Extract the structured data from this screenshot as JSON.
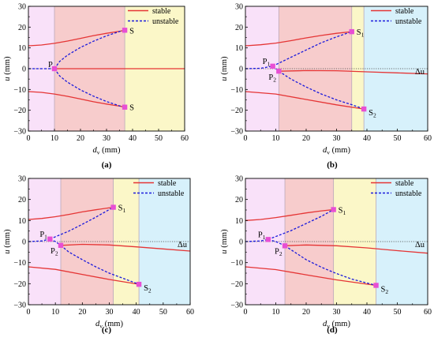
{
  "legend": {
    "stable": "stable",
    "unstable": "unstable"
  },
  "axes": {
    "ylabel_italic": "u",
    "ylabel_unit": " (mm)",
    "xlabel_base": "d",
    "xlabel_sub": "v",
    "xlabel_unit": " (mm)",
    "x_ticks": [
      "0",
      "10",
      "20",
      "30",
      "40",
      "50",
      "60"
    ],
    "y_ticks": [
      "30",
      "20",
      "10",
      "0",
      "-10",
      "-20",
      "-30"
    ]
  },
  "colors": {
    "stable": "#e53535",
    "unstable": "#1a1adc",
    "marker": "#e84fd4",
    "region_pink": "#f9e1f9",
    "region_red": "#f7cccc",
    "region_yellow": "#fbf7c8",
    "region_cyan": "#d7f1fb",
    "zero_line": "#444444"
  },
  "chart_data": [
    {
      "type": "line",
      "caption": "(a)",
      "xlim": [
        0,
        60
      ],
      "ylim": [
        -30,
        30
      ],
      "regions": [
        {
          "from": 0,
          "to": 10,
          "color": "pink"
        },
        {
          "from": 10,
          "to": 37,
          "color": "red"
        },
        {
          "from": 37,
          "to": 60,
          "color": "yellow"
        }
      ],
      "series": [
        {
          "name": "stable",
          "style": "solid",
          "x": [
            0,
            5,
            10,
            15,
            20,
            25,
            30,
            35,
            37
          ],
          "y": [
            11,
            11.4,
            12.2,
            13.3,
            14.6,
            15.9,
            17.0,
            18.0,
            18.5
          ]
        },
        {
          "name": "stable",
          "style": "solid",
          "x": [
            0,
            5,
            10,
            15,
            20,
            25,
            30,
            35,
            37
          ],
          "y": [
            -11,
            -11.4,
            -12.2,
            -13.3,
            -14.6,
            -15.9,
            -17.0,
            -18.0,
            -18.5
          ]
        },
        {
          "name": "stable",
          "style": "solid",
          "x": [
            10,
            60
          ],
          "y": [
            0,
            0
          ]
        },
        {
          "name": "unstable",
          "style": "dashed",
          "x": [
            10,
            12,
            15,
            20,
            25,
            30,
            35,
            37
          ],
          "y": [
            0,
            3.5,
            6.5,
            10.2,
            13.2,
            15.8,
            17.9,
            18.5
          ]
        },
        {
          "name": "unstable",
          "style": "dashed",
          "x": [
            10,
            12,
            15,
            20,
            25,
            30,
            35,
            37
          ],
          "y": [
            0,
            -3.5,
            -6.5,
            -10.2,
            -13.2,
            -15.8,
            -17.9,
            -18.5
          ]
        },
        {
          "name": "unstable",
          "style": "dashed",
          "x": [
            0,
            10
          ],
          "y": [
            0,
            0
          ]
        }
      ],
      "points": [
        {
          "label": "P",
          "sub": "",
          "x": 10,
          "y": 0,
          "dx": -8,
          "dy": -2
        },
        {
          "label": "S",
          "sub": "",
          "x": 37,
          "y": 18.5,
          "dx": 6,
          "dy": 4
        },
        {
          "label": "S",
          "sub": "",
          "x": 37,
          "y": -18.5,
          "dx": 6,
          "dy": 4
        }
      ],
      "delta": null
    },
    {
      "type": "line",
      "caption": "(b)",
      "xlim": [
        0,
        60
      ],
      "ylim": [
        -30,
        30
      ],
      "regions": [
        {
          "from": 0,
          "to": 11,
          "color": "pink"
        },
        {
          "from": 11,
          "to": 35,
          "color": "red"
        },
        {
          "from": 35,
          "to": 39,
          "color": "yellow"
        },
        {
          "from": 39,
          "to": 60,
          "color": "cyan"
        }
      ],
      "series": [
        {
          "name": "stable",
          "style": "solid",
          "x": [
            0,
            5,
            10,
            15,
            20,
            25,
            30,
            35
          ],
          "y": [
            11,
            11.5,
            12.3,
            13.5,
            14.8,
            16.0,
            17.0,
            17.8
          ]
        },
        {
          "name": "stable",
          "style": "solid",
          "x": [
            11,
            20,
            30,
            40,
            50,
            60
          ],
          "y": [
            -1.2,
            -0.9,
            -1.0,
            -1.5,
            -2.0,
            -2.5
          ]
        },
        {
          "name": "stable",
          "style": "solid",
          "x": [
            0,
            10,
            20,
            30,
            39
          ],
          "y": [
            -11,
            -12.2,
            -14.8,
            -17.4,
            -19.4
          ]
        },
        {
          "name": "unstable",
          "style": "dashed",
          "x": [
            0,
            5,
            9
          ],
          "y": [
            0,
            0.2,
            1.2
          ]
        },
        {
          "name": "unstable",
          "style": "dashed",
          "x": [
            9,
            15,
            20,
            25,
            30,
            35
          ],
          "y": [
            1.2,
            5.5,
            9.0,
            12.5,
            15.3,
            17.8
          ]
        },
        {
          "name": "unstable",
          "style": "dashed",
          "x": [
            9,
            10,
            11
          ],
          "y": [
            1.2,
            0,
            -1.2
          ]
        },
        {
          "name": "unstable",
          "style": "dashed",
          "x": [
            11,
            15,
            20,
            25,
            30,
            35,
            39
          ],
          "y": [
            -1.2,
            -5.0,
            -8.8,
            -12.2,
            -15.0,
            -17.3,
            -19.4
          ]
        }
      ],
      "points": [
        {
          "label": "P",
          "sub": "1",
          "x": 9,
          "y": 1.2,
          "dx": -13,
          "dy": -3
        },
        {
          "label": "P",
          "sub": "2",
          "x": 11,
          "y": -1.2,
          "dx": -13,
          "dy": 11
        },
        {
          "label": "S",
          "sub": "1",
          "x": 35,
          "y": 17.8,
          "dx": 6,
          "dy": 4
        },
        {
          "label": "S",
          "sub": "2",
          "x": 39,
          "y": -19.4,
          "dx": 6,
          "dy": 8
        }
      ],
      "delta": {
        "label": "Δu",
        "x": 52,
        "y": 0
      }
    },
    {
      "type": "line",
      "caption": "(c)",
      "xlim": [
        0,
        60
      ],
      "ylim": [
        -30,
        30
      ],
      "regions": [
        {
          "from": 0,
          "to": 12,
          "color": "pink"
        },
        {
          "from": 12,
          "to": 31.5,
          "color": "red"
        },
        {
          "from": 31.5,
          "to": 41,
          "color": "yellow"
        },
        {
          "from": 41,
          "to": 60,
          "color": "cyan"
        }
      ],
      "series": [
        {
          "name": "stable",
          "style": "solid",
          "x": [
            0,
            5,
            10,
            15,
            20,
            25,
            31.5
          ],
          "y": [
            10.5,
            11.0,
            11.8,
            12.9,
            14.1,
            15.1,
            16.3
          ]
        },
        {
          "name": "stable",
          "style": "solid",
          "x": [
            12,
            20,
            30,
            40,
            50,
            60
          ],
          "y": [
            -1.8,
            -1.3,
            -1.6,
            -2.5,
            -3.5,
            -4.5
          ]
        },
        {
          "name": "stable",
          "style": "solid",
          "x": [
            0,
            10,
            20,
            30,
            41
          ],
          "y": [
            -12,
            -13.2,
            -15.6,
            -18.0,
            -20.3
          ]
        },
        {
          "name": "unstable",
          "style": "dashed",
          "x": [
            0,
            5,
            8
          ],
          "y": [
            0,
            0.3,
            1.2
          ]
        },
        {
          "name": "unstable",
          "style": "dashed",
          "x": [
            8,
            15,
            20,
            25,
            31.5
          ],
          "y": [
            1.2,
            5.0,
            8.2,
            11.6,
            16.3
          ]
        },
        {
          "name": "unstable",
          "style": "dashed",
          "x": [
            8,
            10,
            12
          ],
          "y": [
            1.2,
            0,
            -1.8
          ]
        },
        {
          "name": "unstable",
          "style": "dashed",
          "x": [
            12,
            15,
            20,
            25,
            30,
            35,
            41
          ],
          "y": [
            -1.8,
            -5.0,
            -8.6,
            -12.0,
            -15.0,
            -17.4,
            -20.3
          ]
        }
      ],
      "points": [
        {
          "label": "P",
          "sub": "1",
          "x": 8,
          "y": 1.2,
          "dx": -13,
          "dy": -3
        },
        {
          "label": "P",
          "sub": "2",
          "x": 12,
          "y": -1.8,
          "dx": -13,
          "dy": 10
        },
        {
          "label": "S",
          "sub": "1",
          "x": 31.5,
          "y": 16.3,
          "dx": 6,
          "dy": 4
        },
        {
          "label": "S",
          "sub": "2",
          "x": 41,
          "y": -20.3,
          "dx": 6,
          "dy": 8
        }
      ],
      "delta": {
        "label": "Δu",
        "x": 52,
        "y": 0
      }
    },
    {
      "type": "line",
      "caption": "(d)",
      "xlim": [
        0,
        60
      ],
      "ylim": [
        -30,
        30
      ],
      "regions": [
        {
          "from": 0,
          "to": 13,
          "color": "pink"
        },
        {
          "from": 13,
          "to": 29,
          "color": "red"
        },
        {
          "from": 29,
          "to": 43,
          "color": "yellow"
        },
        {
          "from": 43,
          "to": 60,
          "color": "cyan"
        }
      ],
      "series": [
        {
          "name": "stable",
          "style": "solid",
          "x": [
            0,
            5,
            10,
            15,
            20,
            25,
            29
          ],
          "y": [
            10,
            10.5,
            11.4,
            12.5,
            13.6,
            14.6,
            15.2
          ]
        },
        {
          "name": "stable",
          "style": "solid",
          "x": [
            13,
            20,
            30,
            40,
            50,
            60
          ],
          "y": [
            -2.0,
            -1.6,
            -2.0,
            -3.0,
            -4.3,
            -5.5
          ]
        },
        {
          "name": "stable",
          "style": "solid",
          "x": [
            0,
            10,
            20,
            30,
            43
          ],
          "y": [
            -12,
            -13.3,
            -15.8,
            -18.2,
            -20.8
          ]
        },
        {
          "name": "unstable",
          "style": "dashed",
          "x": [
            0,
            5,
            7.5
          ],
          "y": [
            0,
            0.3,
            1.0
          ]
        },
        {
          "name": "unstable",
          "style": "dashed",
          "x": [
            7.5,
            15,
            20,
            25,
            29
          ],
          "y": [
            1.0,
            5.2,
            8.6,
            12.0,
            15.2
          ]
        },
        {
          "name": "unstable",
          "style": "dashed",
          "x": [
            7.5,
            10,
            13
          ],
          "y": [
            1.0,
            0,
            -2.0
          ]
        },
        {
          "name": "unstable",
          "style": "dashed",
          "x": [
            13,
            20,
            25,
            30,
            35,
            43
          ],
          "y": [
            -2.0,
            -8.6,
            -12.2,
            -15.2,
            -17.8,
            -20.8
          ]
        }
      ],
      "points": [
        {
          "label": "P",
          "sub": "1",
          "x": 7.5,
          "y": 1.0,
          "dx": -13,
          "dy": -3
        },
        {
          "label": "P",
          "sub": "2",
          "x": 13,
          "y": -2.0,
          "dx": -13,
          "dy": 10
        },
        {
          "label": "S",
          "sub": "1",
          "x": 29,
          "y": 15.2,
          "dx": 6,
          "dy": 4
        },
        {
          "label": "S",
          "sub": "2",
          "x": 43,
          "y": -20.8,
          "dx": 6,
          "dy": 8
        }
      ],
      "delta": {
        "label": "Δu",
        "x": 52,
        "y": 0
      }
    }
  ]
}
